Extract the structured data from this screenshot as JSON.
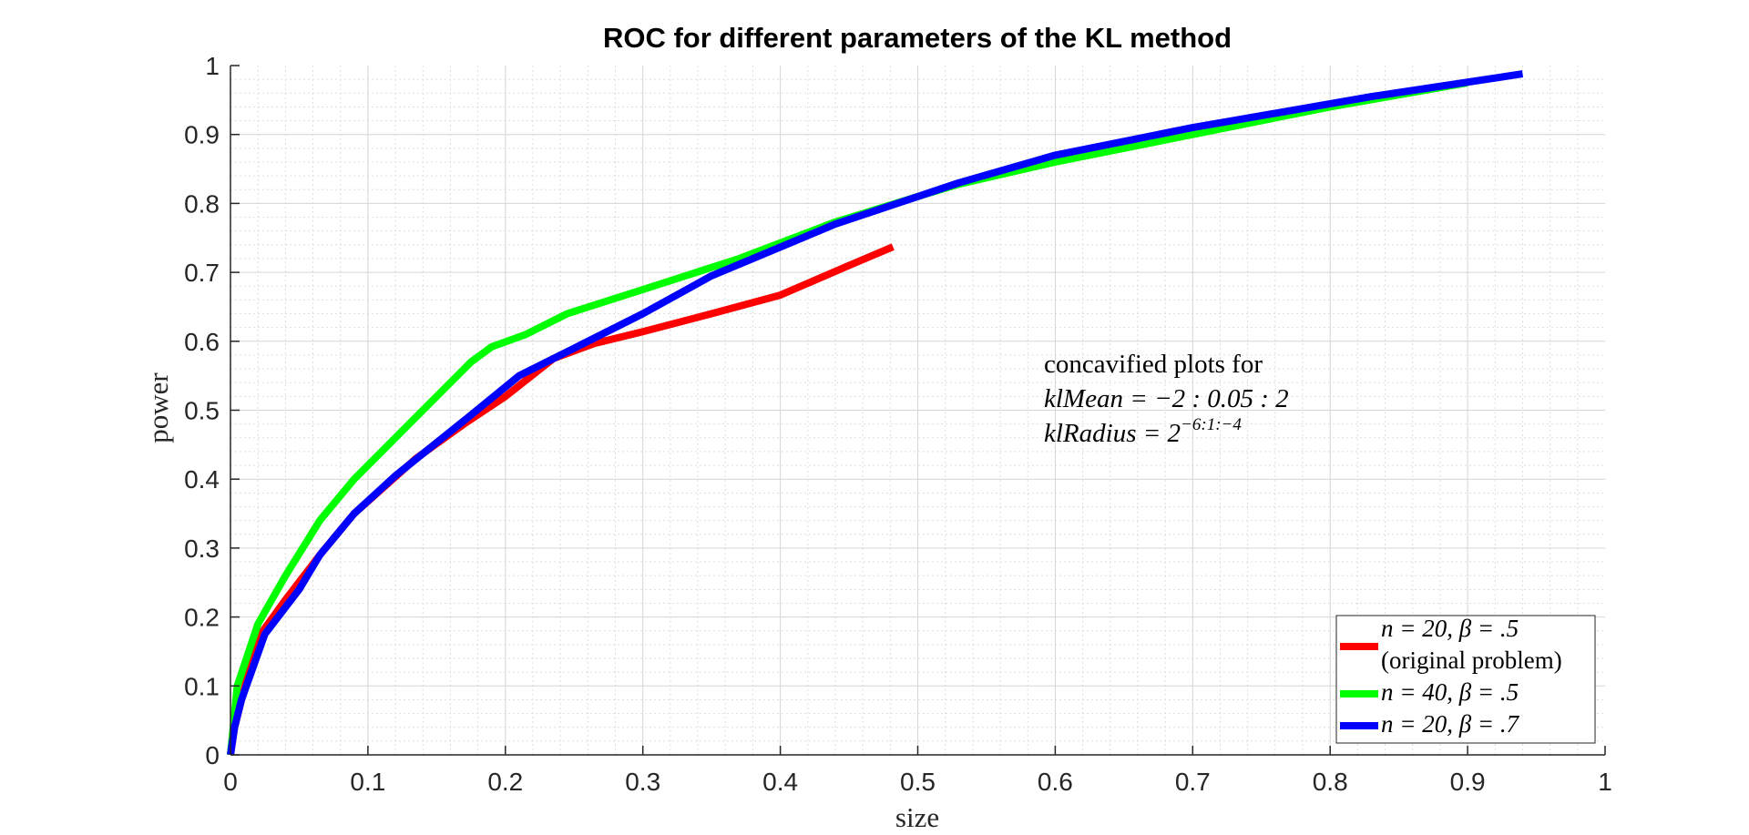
{
  "chart_data": {
    "type": "line",
    "title": "ROC for different parameters of the KL method",
    "xlabel": "size",
    "ylabel": "power",
    "xlim": [
      0,
      1
    ],
    "ylim": [
      0,
      1
    ],
    "xticks": [
      "0",
      "0.1",
      "0.2",
      "0.3",
      "0.4",
      "0.5",
      "0.6",
      "0.7",
      "0.8",
      "0.9",
      "1"
    ],
    "yticks": [
      "0",
      "0.1",
      "0.2",
      "0.3",
      "0.4",
      "0.5",
      "0.6",
      "0.7",
      "0.8",
      "0.9",
      "1"
    ],
    "grid": true,
    "minor_grid": true,
    "legend_position": "bottom-right",
    "annotation": {
      "line1": "concavified plots for",
      "line2": "klMean = −2 : 0.05 : 2",
      "line3_prefix": "klRadius = 2",
      "line3_exp": "−6:1:−4"
    },
    "series": [
      {
        "legend_line1": "n = 20, β = .5",
        "legend_line2": "(original problem)",
        "color": "#ff0000",
        "x": [
          0,
          0.003,
          0.008,
          0.02,
          0.04,
          0.065,
          0.09,
          0.135,
          0.17,
          0.2,
          0.235,
          0.265,
          0.3,
          0.35,
          0.4,
          0.45,
          0.482
        ],
        "y": [
          0,
          0.04,
          0.08,
          0.17,
          0.225,
          0.29,
          0.35,
          0.43,
          0.48,
          0.52,
          0.575,
          0.597,
          0.614,
          0.64,
          0.667,
          0.71,
          0.737
        ]
      },
      {
        "legend_line1": "n = 40, β = .5",
        "color": "#00ff00",
        "x": [
          0,
          0.005,
          0.02,
          0.04,
          0.065,
          0.09,
          0.13,
          0.175,
          0.19,
          0.215,
          0.245,
          0.3,
          0.37,
          0.44,
          0.5,
          0.53,
          0.6,
          0.7,
          0.8,
          0.9
        ],
        "y": [
          0,
          0.1,
          0.19,
          0.26,
          0.34,
          0.4,
          0.48,
          0.57,
          0.592,
          0.61,
          0.64,
          0.675,
          0.72,
          0.773,
          0.81,
          0.828,
          0.86,
          0.9,
          0.94,
          0.975
        ]
      },
      {
        "legend_line1": "n = 20, β = .7",
        "color": "#0000ff",
        "x": [
          0,
          0.003,
          0.008,
          0.025,
          0.05,
          0.065,
          0.09,
          0.12,
          0.17,
          0.21,
          0.25,
          0.3,
          0.35,
          0.44,
          0.53,
          0.6,
          0.7,
          0.83,
          0.94
        ],
        "y": [
          0,
          0.04,
          0.08,
          0.175,
          0.24,
          0.29,
          0.35,
          0.405,
          0.485,
          0.55,
          0.59,
          0.64,
          0.695,
          0.77,
          0.83,
          0.87,
          0.91,
          0.955,
          0.988
        ]
      }
    ]
  }
}
